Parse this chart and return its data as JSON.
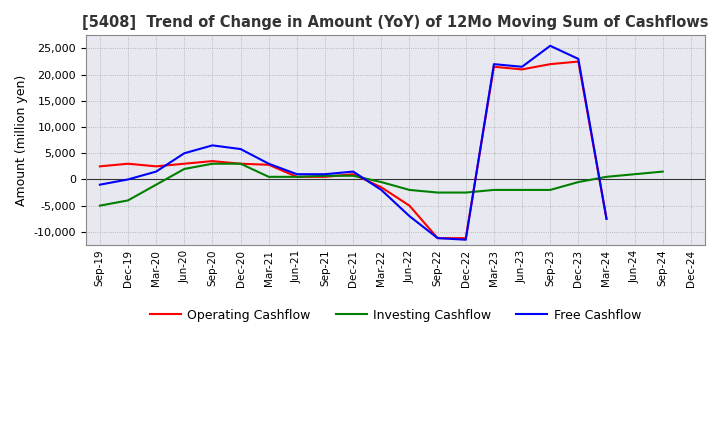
{
  "title": "[5408]  Trend of Change in Amount (YoY) of 12Mo Moving Sum of Cashflows",
  "ylabel": "Amount (million yen)",
  "x_labels": [
    "Sep-19",
    "Dec-19",
    "Mar-20",
    "Jun-20",
    "Sep-20",
    "Dec-20",
    "Mar-21",
    "Jun-21",
    "Sep-21",
    "Dec-21",
    "Mar-22",
    "Jun-22",
    "Sep-22",
    "Dec-22",
    "Mar-23",
    "Jun-23",
    "Sep-23",
    "Dec-23",
    "Mar-24",
    "Jun-24",
    "Sep-24",
    "Dec-24"
  ],
  "operating": [
    2500,
    3000,
    2500,
    3000,
    3500,
    3000,
    2800,
    500,
    500,
    1000,
    -1500,
    -5000,
    -11200,
    -11200,
    21500,
    21000,
    22000,
    22500,
    -7500,
    null,
    null,
    null
  ],
  "investing": [
    -5000,
    -4000,
    -1000,
    2000,
    3000,
    3000,
    500,
    500,
    700,
    700,
    -500,
    -2000,
    -2500,
    -2500,
    -2000,
    -2000,
    -2000,
    -500,
    500,
    1000,
    1500,
    null
  ],
  "free": [
    -1000,
    0,
    1500,
    5000,
    6500,
    5800,
    3000,
    1000,
    1000,
    1500,
    -2000,
    -7000,
    -11200,
    -11500,
    22000,
    21500,
    25500,
    23000,
    -7500,
    null,
    null,
    null
  ],
  "ylim": [
    -12500,
    27500
  ],
  "yticks": [
    -10000,
    -5000,
    0,
    5000,
    10000,
    15000,
    20000,
    25000
  ],
  "operating_color": "#FF0000",
  "investing_color": "#008000",
  "free_color": "#0000FF",
  "bg_color": "#FFFFFF",
  "plot_bg_color": "#E8E8F0",
  "grid_color": "#AAAAAA",
  "legend_labels": [
    "Operating Cashflow",
    "Investing Cashflow",
    "Free Cashflow"
  ]
}
